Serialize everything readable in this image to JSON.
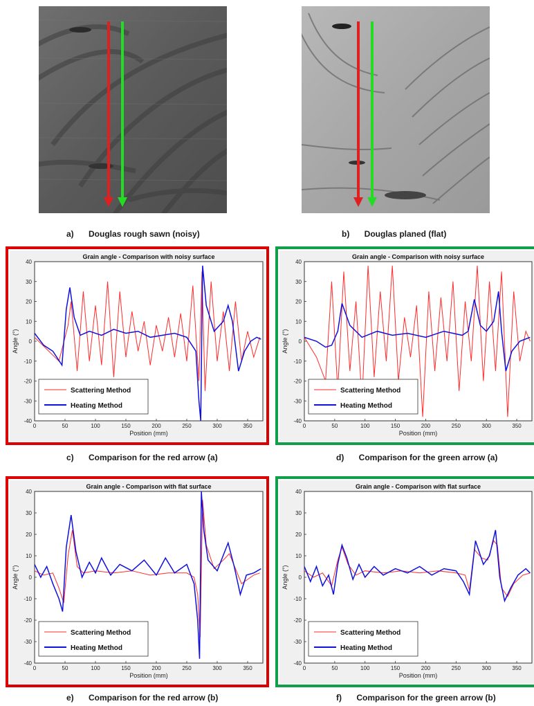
{
  "photos": [
    {
      "caption_letter": "a)",
      "caption": "Douglas rough sawn (noisy)",
      "surface": "rough sawn",
      "arrows": [
        "red",
        "green"
      ]
    },
    {
      "caption_letter": "b)",
      "caption": "Douglas planed (flat)",
      "surface": "planed",
      "arrows": [
        "red",
        "green"
      ]
    }
  ],
  "colors": {
    "red_arrow": "#e02020",
    "green_arrow": "#22dd22",
    "red_frame": "#dd0000",
    "green_frame": "#11a04a",
    "scattering": "#ff2a2a",
    "heating": "#1010dd"
  },
  "chart_data": [
    {
      "type": "line",
      "panel": "c)",
      "caption": "Comparison for the red arrow (a)",
      "title": "Grain angle - Comparison with noisy surface",
      "xlabel": "Position (mm)",
      "ylabel": "Angle (°)",
      "xlim": [
        0,
        375
      ],
      "ylim": [
        -40,
        40
      ],
      "xticks": [
        0,
        50,
        100,
        150,
        200,
        250,
        300,
        350
      ],
      "yticks": [
        -40,
        -30,
        -20,
        -10,
        0,
        10,
        20,
        30,
        40
      ],
      "legend": "bottom-left",
      "grid": false,
      "series": [
        {
          "name": "Scattering Method",
          "color": "#ff2a2a",
          "x": [
            0,
            20,
            40,
            55,
            60,
            70,
            80,
            90,
            100,
            110,
            120,
            130,
            140,
            150,
            160,
            170,
            180,
            190,
            200,
            210,
            220,
            230,
            240,
            250,
            260,
            270,
            275,
            280,
            290,
            300,
            310,
            320,
            330,
            340,
            350,
            360,
            370
          ],
          "y": [
            2,
            -4,
            -10,
            8,
            20,
            -15,
            25,
            -10,
            18,
            -12,
            30,
            -18,
            25,
            -8,
            15,
            -5,
            10,
            -12,
            8,
            -5,
            12,
            -8,
            14,
            -10,
            28,
            -20,
            35,
            -25,
            30,
            -10,
            15,
            -15,
            20,
            -10,
            5,
            -8,
            2
          ]
        },
        {
          "name": "Heating Method",
          "color": "#1010dd",
          "x": [
            0,
            15,
            30,
            45,
            52,
            58,
            65,
            75,
            90,
            110,
            130,
            150,
            170,
            190,
            210,
            230,
            250,
            265,
            270,
            273,
            276,
            282,
            295,
            310,
            318,
            325,
            335,
            345,
            355,
            365,
            372
          ],
          "y": [
            4,
            -2,
            -5,
            -12,
            16,
            27,
            12,
            3,
            5,
            3,
            6,
            4,
            5,
            2,
            3,
            4,
            2,
            -5,
            -30,
            -40,
            38,
            18,
            5,
            10,
            18,
            10,
            -15,
            -5,
            0,
            2,
            1
          ]
        }
      ]
    },
    {
      "type": "line",
      "panel": "d)",
      "caption": "Comparison for the green arrow (a)",
      "title": "Grain angle - Comparison with noisy surface",
      "xlabel": "Position (mm)",
      "ylabel": "Angle (°)",
      "xlim": [
        0,
        375
      ],
      "ylim": [
        -40,
        40
      ],
      "xticks": [
        0,
        50,
        100,
        150,
        200,
        250,
        300,
        350
      ],
      "yticks": [
        -40,
        -30,
        -20,
        -10,
        0,
        10,
        20,
        30,
        40
      ],
      "legend": "bottom-left",
      "grid": false,
      "series": [
        {
          "name": "Scattering Method",
          "color": "#ff2a2a",
          "x": [
            0,
            20,
            35,
            45,
            55,
            65,
            75,
            85,
            95,
            105,
            115,
            125,
            135,
            145,
            155,
            165,
            175,
            185,
            195,
            205,
            215,
            225,
            235,
            245,
            255,
            265,
            275,
            285,
            295,
            305,
            315,
            325,
            335,
            345,
            355,
            365,
            372
          ],
          "y": [
            2,
            -8,
            -20,
            30,
            -25,
            35,
            -15,
            20,
            -30,
            38,
            -18,
            25,
            -10,
            38,
            -20,
            12,
            -8,
            18,
            -38,
            25,
            -15,
            22,
            -10,
            30,
            -25,
            20,
            -10,
            38,
            -20,
            30,
            -15,
            35,
            -38,
            25,
            -10,
            5,
            0
          ]
        },
        {
          "name": "Heating Method",
          "color": "#1010dd",
          "x": [
            0,
            20,
            35,
            45,
            55,
            62,
            75,
            95,
            120,
            145,
            170,
            200,
            230,
            260,
            270,
            280,
            290,
            300,
            312,
            320,
            325,
            332,
            342,
            355,
            372
          ],
          "y": [
            2,
            0,
            -3,
            -2,
            5,
            19,
            8,
            2,
            5,
            3,
            4,
            2,
            5,
            3,
            5,
            21,
            8,
            5,
            10,
            25,
            5,
            -15,
            -5,
            0,
            2
          ]
        }
      ]
    },
    {
      "type": "line",
      "panel": "e)",
      "caption": "Comparison for the red arrow (b)",
      "title": "Grain angle - Comparison with flat surface",
      "xlabel": "Position (mm)",
      "ylabel": "Angle (°)",
      "xlim": [
        0,
        375
      ],
      "ylim": [
        -40,
        40
      ],
      "xticks": [
        0,
        50,
        100,
        150,
        200,
        250,
        300,
        350
      ],
      "yticks": [
        -40,
        -30,
        -20,
        -10,
        0,
        10,
        20,
        30,
        40
      ],
      "legend": "bottom-left",
      "grid": false,
      "series": [
        {
          "name": "Scattering Method",
          "color": "#ff2a2a",
          "x": [
            0,
            15,
            30,
            40,
            48,
            55,
            62,
            70,
            80,
            100,
            130,
            160,
            190,
            220,
            250,
            262,
            268,
            272,
            276,
            282,
            295,
            310,
            320,
            330,
            340,
            350,
            360,
            370
          ],
          "y": [
            3,
            1,
            2,
            -5,
            -12,
            10,
            22,
            5,
            2,
            3,
            2,
            3,
            1,
            2,
            2,
            0,
            -8,
            -28,
            36,
            15,
            4,
            8,
            11,
            4,
            -3,
            -1,
            1,
            2
          ]
        },
        {
          "name": "Heating Method",
          "color": "#1010dd",
          "x": [
            0,
            10,
            20,
            30,
            40,
            46,
            52,
            60,
            68,
            78,
            90,
            100,
            110,
            125,
            140,
            160,
            180,
            200,
            215,
            230,
            250,
            262,
            268,
            271,
            274,
            278,
            285,
            300,
            318,
            328,
            338,
            348,
            360,
            372
          ],
          "y": [
            6,
            0,
            5,
            -3,
            -10,
            -16,
            14,
            29,
            12,
            0,
            7,
            2,
            9,
            1,
            6,
            3,
            8,
            1,
            9,
            2,
            6,
            -3,
            -20,
            -38,
            40,
            22,
            8,
            3,
            16,
            5,
            -8,
            1,
            2,
            4
          ]
        }
      ]
    },
    {
      "type": "line",
      "panel": "f)",
      "caption": "Comparison for the green arrow (b)",
      "title": "Grain angle - Comparison with flat surface",
      "xlabel": "Position (mm)",
      "ylabel": "Angle (°)",
      "xlim": [
        0,
        375
      ],
      "ylim": [
        -40,
        40
      ],
      "xticks": [
        0,
        50,
        100,
        150,
        200,
        250,
        300,
        350
      ],
      "yticks": [
        -40,
        -30,
        -20,
        -10,
        0,
        10,
        20,
        30,
        40
      ],
      "legend": "bottom-left",
      "grid": false,
      "series": [
        {
          "name": "Scattering Method",
          "color": "#ff2a2a",
          "x": [
            0,
            15,
            30,
            45,
            55,
            62,
            72,
            85,
            100,
            130,
            160,
            190,
            220,
            250,
            265,
            272,
            280,
            292,
            302,
            312,
            318,
            325,
            335,
            345,
            360,
            372
          ],
          "y": [
            3,
            0,
            2,
            -4,
            8,
            14,
            6,
            1,
            3,
            2,
            3,
            2,
            3,
            2,
            1,
            -6,
            13,
            9,
            8,
            17,
            15,
            -5,
            -9,
            -3,
            1,
            2
          ]
        },
        {
          "name": "Heating Method",
          "color": "#1010dd",
          "x": [
            0,
            10,
            20,
            30,
            40,
            48,
            55,
            62,
            70,
            80,
            90,
            100,
            115,
            130,
            150,
            170,
            190,
            210,
            230,
            250,
            262,
            272,
            282,
            295,
            305,
            315,
            322,
            330,
            340,
            352,
            365,
            372
          ],
          "y": [
            5,
            -2,
            5,
            -4,
            1,
            -8,
            6,
            15,
            9,
            -1,
            6,
            0,
            5,
            1,
            4,
            2,
            5,
            1,
            4,
            3,
            -2,
            -8,
            17,
            6,
            10,
            22,
            0,
            -11,
            -5,
            1,
            4,
            2
          ]
        }
      ]
    }
  ]
}
